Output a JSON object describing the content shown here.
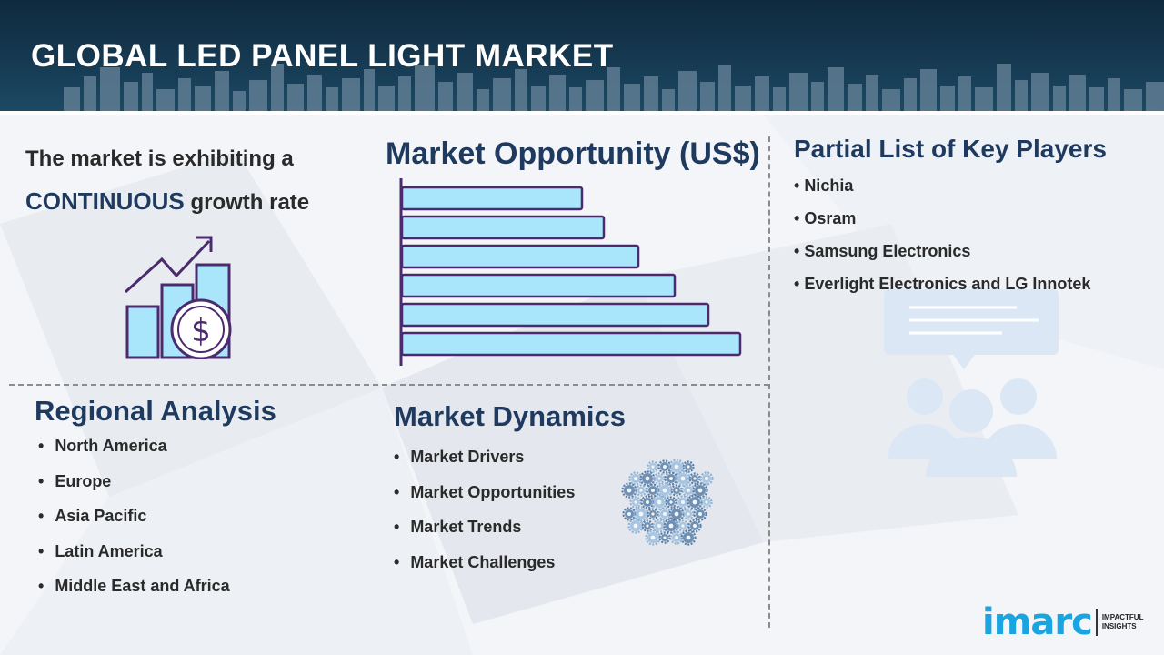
{
  "header": {
    "title": "GLOBAL LED PANEL LIGHT MARKET"
  },
  "growth": {
    "line1": "The market is exhibiting a",
    "highlight": "CONTINUOUS",
    "line2_rest": "growth rate",
    "icon": "growth-chart-dollar-icon"
  },
  "opportunity": {
    "title": "Market Opportunity (US$)"
  },
  "chart_data": {
    "type": "bar",
    "orientation": "horizontal",
    "categories": [
      "",
      "",
      "",
      "",
      "",
      ""
    ],
    "values": [
      198,
      222,
      260,
      300,
      337,
      372
    ],
    "bar_color": "#a9e6fb",
    "bar_border": "#4b2a6e",
    "title": "Market Opportunity (US$)"
  },
  "players": {
    "title": "Partial List of Key Players",
    "items": [
      "Nichia",
      "Osram",
      "Samsung Electronics",
      "Everlight Electronics and LG Innotek"
    ],
    "icon": "people-discussion-icon"
  },
  "regional": {
    "title": "Regional Analysis",
    "items": [
      "North America",
      "Europe",
      "Asia Pacific",
      "Latin America",
      "Middle East and Africa"
    ]
  },
  "dynamics": {
    "title": "Market Dynamics",
    "items": [
      "Market Drivers",
      "Market Opportunities",
      "Market Trends",
      "Market Challenges"
    ],
    "icon": "gears-sphere-icon"
  },
  "logo": {
    "word": "imarc",
    "tagline_1": "IMPACTFUL",
    "tagline_2": "INSIGHTS"
  },
  "colors": {
    "title_blue": "#1f3a5f",
    "accent_cyan": "#1aa4e0",
    "bar_fill": "#a9e6fb",
    "bar_stroke": "#4b2a6e"
  }
}
